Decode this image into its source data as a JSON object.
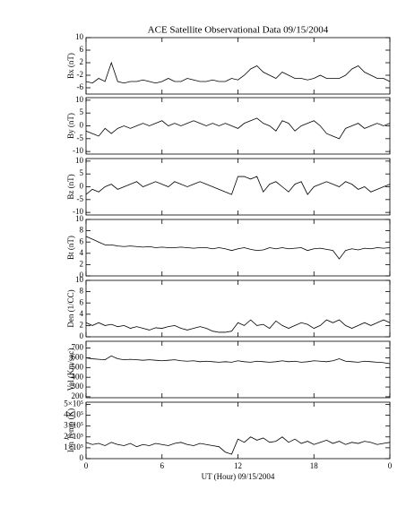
{
  "chart_data": [
    {
      "type": "line",
      "title": "ACE Satellite Observational Data   09/15/2004",
      "y_label": "Bx (nT)",
      "x": [
        0,
        0.5,
        1,
        1.5,
        2,
        2.5,
        3,
        3.5,
        4,
        4.5,
        5,
        5.5,
        6,
        6.5,
        7,
        7.5,
        8,
        8.5,
        9,
        9.5,
        10,
        10.5,
        11,
        11.5,
        12,
        12.5,
        13,
        13.5,
        14,
        14.5,
        15,
        15.5,
        16,
        16.5,
        17,
        17.5,
        18,
        18.5,
        19,
        19.5,
        20,
        20.5,
        21,
        21.5,
        22,
        22.5,
        23,
        23.5,
        24
      ],
      "series": [
        {
          "name": "Bx",
          "color": "#000000",
          "values": [
            -4,
            -4.5,
            -3,
            -4,
            2,
            -4,
            -4.5,
            -4,
            -4,
            -3.5,
            -4,
            -4.5,
            -4,
            -3,
            -4,
            -4,
            -3,
            -3.5,
            -4,
            -4,
            -3.5,
            -4,
            -4,
            -3,
            -3.5,
            -2,
            0,
            1,
            -1,
            -2,
            -3,
            -1,
            -2,
            -3,
            -3,
            -3.5,
            -3,
            -2,
            -3,
            -3,
            -3,
            -2,
            0,
            1,
            -1,
            -2,
            -3,
            -3,
            -4
          ]
        }
      ],
      "xlim": [
        0,
        24
      ],
      "xticks": [
        0,
        6,
        12,
        18,
        {
          "value": 24,
          "label": "0"
        }
      ],
      "ylim": [
        -8,
        10
      ],
      "yticks": [
        -6,
        -2,
        2,
        6,
        10
      ]
    },
    {
      "type": "line",
      "y_label": "By (nT)",
      "x": [
        0,
        0.5,
        1,
        1.5,
        2,
        2.5,
        3,
        3.5,
        4,
        4.5,
        5,
        5.5,
        6,
        6.5,
        7,
        7.5,
        8,
        8.5,
        9,
        9.5,
        10,
        10.5,
        11,
        11.5,
        12,
        12.5,
        13,
        13.5,
        14,
        14.5,
        15,
        15.5,
        16,
        16.5,
        17,
        17.5,
        18,
        18.5,
        19,
        19.5,
        20,
        20.5,
        21,
        21.5,
        22,
        22.5,
        23,
        23.5,
        24
      ],
      "series": [
        {
          "name": "By",
          "color": "#000000",
          "values": [
            -2,
            -3,
            -4,
            -1,
            -3,
            -1,
            0,
            -1,
            0,
            1,
            0,
            1,
            2,
            0,
            1,
            0,
            1,
            2,
            1,
            0,
            1,
            0,
            1,
            0,
            -1,
            1,
            2,
            3,
            1,
            0,
            -2,
            2,
            1,
            -2,
            0,
            1,
            2,
            0,
            -3,
            -4,
            -5,
            -1,
            0,
            1,
            -1,
            0,
            1,
            0,
            1
          ]
        }
      ],
      "xlim": [
        0,
        24
      ],
      "xticks": [
        0,
        6,
        12,
        18,
        {
          "value": 24,
          "label": "0"
        }
      ],
      "ylim": [
        -11,
        11
      ],
      "yticks": [
        -10,
        -5,
        0,
        5,
        10
      ]
    },
    {
      "type": "line",
      "y_label": "Bz (nT)",
      "x": [
        0,
        0.5,
        1,
        1.5,
        2,
        2.5,
        3,
        3.5,
        4,
        4.5,
        5,
        5.5,
        6,
        6.5,
        7,
        7.5,
        8,
        8.5,
        9,
        9.5,
        10,
        10.5,
        11,
        11.5,
        12,
        12.5,
        13,
        13.5,
        14,
        14.5,
        15,
        15.5,
        16,
        16.5,
        17,
        17.5,
        18,
        18.5,
        19,
        19.5,
        20,
        20.5,
        21,
        21.5,
        22,
        22.5,
        23,
        23.5,
        24
      ],
      "series": [
        {
          "name": "Bz",
          "color": "#000000",
          "values": [
            -3,
            -1,
            -2,
            0,
            1,
            -1,
            0,
            1,
            2,
            0,
            1,
            2,
            1,
            0,
            2,
            1,
            0,
            1,
            2,
            1,
            0,
            -1,
            -2,
            -3,
            4,
            4,
            3,
            4,
            -2,
            1,
            2,
            0,
            -2,
            1,
            2,
            -3,
            0,
            1,
            2,
            1,
            0,
            2,
            1,
            -1,
            0,
            -2,
            -1,
            0,
            1
          ]
        }
      ],
      "xlim": [
        0,
        24
      ],
      "xticks": [
        0,
        6,
        12,
        18,
        {
          "value": 24,
          "label": "0"
        }
      ],
      "ylim": [
        -11,
        11
      ],
      "yticks": [
        -10,
        -5,
        0,
        5,
        10
      ]
    },
    {
      "type": "line",
      "y_label": "Bt (nT)",
      "x": [
        0,
        0.5,
        1,
        1.5,
        2,
        2.5,
        3,
        3.5,
        4,
        4.5,
        5,
        5.5,
        6,
        6.5,
        7,
        7.5,
        8,
        8.5,
        9,
        9.5,
        10,
        10.5,
        11,
        11.5,
        12,
        12.5,
        13,
        13.5,
        14,
        14.5,
        15,
        15.5,
        16,
        16.5,
        17,
        17.5,
        18,
        18.5,
        19,
        19.5,
        20,
        20.5,
        21,
        21.5,
        22,
        22.5,
        23,
        23.5,
        24
      ],
      "series": [
        {
          "name": "Bt",
          "color": "#000000",
          "values": [
            7,
            6.5,
            6,
            5.5,
            5.5,
            5.3,
            5.2,
            5.3,
            5.2,
            5.1,
            5.2,
            5,
            5.1,
            5,
            5,
            5.1,
            5,
            4.9,
            5,
            5,
            4.8,
            5,
            4.8,
            4.5,
            4.8,
            5,
            4.7,
            4.5,
            4.6,
            5,
            4.8,
            5,
            4.8,
            4.9,
            5,
            4.5,
            4.8,
            4.9,
            4.7,
            4.5,
            3,
            4.5,
            4.8,
            4.6,
            4.9,
            4.8,
            5,
            4.9,
            5
          ]
        }
      ],
      "xlim": [
        0,
        24
      ],
      "xticks": [
        0,
        6,
        12,
        18,
        {
          "value": 24,
          "label": "0"
        }
      ],
      "ylim": [
        0,
        10
      ],
      "yticks": [
        0,
        2,
        4,
        6,
        8,
        10
      ]
    },
    {
      "type": "line",
      "y_label": "Den (1/CC)",
      "x": [
        0,
        0.5,
        1,
        1.5,
        2,
        2.5,
        3,
        3.5,
        4,
        4.5,
        5,
        5.5,
        6,
        6.5,
        7,
        7.5,
        8,
        8.5,
        9,
        9.5,
        10,
        10.5,
        11,
        11.5,
        12,
        12.5,
        13,
        13.5,
        14,
        14.5,
        15,
        15.5,
        16,
        16.5,
        17,
        17.5,
        18,
        18.5,
        19,
        19.5,
        20,
        20.5,
        21,
        21.5,
        22,
        22.5,
        23,
        23.5,
        24
      ],
      "series": [
        {
          "name": "Den",
          "color": "#000000",
          "values": [
            2.5,
            2,
            2.5,
            2,
            2.2,
            1.8,
            2,
            1.5,
            1.8,
            1.5,
            1.2,
            1.6,
            1.5,
            1.8,
            2,
            1.5,
            1.2,
            1.5,
            1.8,
            1.5,
            1,
            0.8,
            0.8,
            1,
            2.5,
            2,
            3,
            2,
            2.2,
            1.5,
            2.8,
            2,
            1.5,
            2,
            2.5,
            2.2,
            1.5,
            2,
            3,
            2.5,
            3,
            2,
            1.5,
            2,
            2.5,
            2,
            2.5,
            3,
            2.5
          ]
        }
      ],
      "xlim": [
        0,
        24
      ],
      "xticks": [
        0,
        6,
        12,
        18,
        {
          "value": 24,
          "label": "0"
        }
      ],
      "ylim": [
        0,
        10
      ],
      "yticks": [
        0,
        2,
        4,
        6,
        8,
        10
      ]
    },
    {
      "type": "line",
      "y_label": "Vel (Km/sec)",
      "x": [
        0,
        0.5,
        1,
        1.5,
        2,
        2.5,
        3,
        3.5,
        4,
        4.5,
        5,
        5.5,
        6,
        6.5,
        7,
        7.5,
        8,
        8.5,
        9,
        9.5,
        10,
        10.5,
        11,
        11.5,
        12,
        12.5,
        13,
        13.5,
        14,
        14.5,
        15,
        15.5,
        16,
        16.5,
        17,
        17.5,
        18,
        18.5,
        19,
        19.5,
        20,
        20.5,
        21,
        21.5,
        22,
        22.5,
        23,
        23.5,
        24
      ],
      "series": [
        {
          "name": "Vel",
          "color": "#000000",
          "values": [
            600,
            590,
            585,
            580,
            620,
            590,
            580,
            585,
            580,
            575,
            580,
            575,
            570,
            575,
            580,
            570,
            565,
            570,
            560,
            565,
            560,
            555,
            560,
            555,
            570,
            560,
            555,
            565,
            560,
            555,
            560,
            570,
            560,
            565,
            555,
            560,
            570,
            565,
            560,
            570,
            590,
            565,
            560,
            555,
            565,
            560,
            555,
            550,
            540
          ]
        }
      ],
      "xlim": [
        0,
        24
      ],
      "xticks": [
        0,
        6,
        12,
        18,
        {
          "value": 24,
          "label": "0"
        }
      ],
      "ylim": [
        190,
        770
      ],
      "yticks": [
        200,
        300,
        400,
        500,
        600,
        700
      ]
    },
    {
      "type": "line",
      "y_label": "Ion Temp (K)",
      "x_label": "UT (Hour)   09/15/2004",
      "x": [
        0,
        0.5,
        1,
        1.5,
        2,
        2.5,
        3,
        3.5,
        4,
        4.5,
        5,
        5.5,
        6,
        6.5,
        7,
        7.5,
        8,
        8.5,
        9,
        9.5,
        10,
        10.5,
        11,
        11.5,
        12,
        12.5,
        13,
        13.5,
        14,
        14.5,
        15,
        15.5,
        16,
        16.5,
        17,
        17.5,
        18,
        18.5,
        19,
        19.5,
        20,
        20.5,
        21,
        21.5,
        22,
        22.5,
        23,
        23.5,
        24
      ],
      "series": [
        {
          "name": "Ion Temp",
          "color": "#000000",
          "values": [
            150000,
            130000,
            140000,
            120000,
            150000,
            130000,
            120000,
            140000,
            110000,
            130000,
            120000,
            140000,
            130000,
            120000,
            140000,
            150000,
            130000,
            120000,
            140000,
            130000,
            120000,
            110000,
            60000,
            40000,
            180000,
            150000,
            200000,
            170000,
            190000,
            150000,
            160000,
            200000,
            150000,
            180000,
            140000,
            160000,
            130000,
            150000,
            170000,
            140000,
            160000,
            130000,
            150000,
            140000,
            160000,
            150000,
            130000,
            140000,
            150000
          ]
        }
      ],
      "xlim": [
        0,
        24
      ],
      "xticks": [
        0,
        6,
        12,
        18,
        {
          "value": 24,
          "label": "0"
        }
      ],
      "ylim": [
        0,
        520000
      ],
      "yticks": [
        0,
        {
          "value": 100000,
          "label": "1×10⁵"
        },
        {
          "value": 200000,
          "label": "2×10⁵"
        },
        {
          "value": 300000,
          "label": "3×10⁵"
        },
        {
          "value": 400000,
          "label": "4×10⁵"
        },
        {
          "value": 500000,
          "label": "5×10⁵"
        }
      ]
    }
  ]
}
